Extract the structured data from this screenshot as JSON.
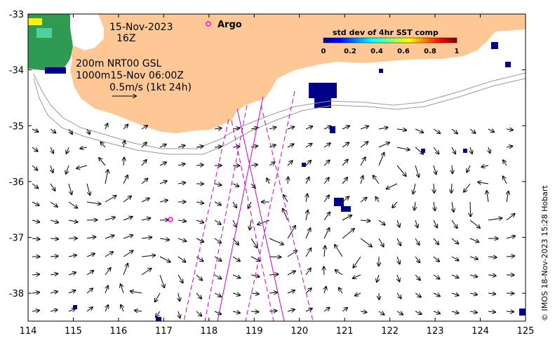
{
  "map": {
    "date_line1": "15-Nov-2023",
    "date_line2": "16Z",
    "depth_line1": "200m  NRT00 GSL",
    "depth_line2": "1000m15-Nov 06:00Z",
    "scale_label": "0.5m/s (1kt 24h)",
    "argo_label": "Argo",
    "colorbar_title": "std dev of 4hr SST comp",
    "colorbar_ticks": [
      "0",
      "0.2",
      "0.4",
      "0.6",
      "0.8",
      "1"
    ],
    "credit": "© IMOS 18-Nov-2023 15:28 Hobart",
    "x_ticks": [
      "114",
      "115",
      "116",
      "117",
      "118",
      "119",
      "120",
      "121",
      "122",
      "123",
      "124",
      "125"
    ],
    "y_ticks": [
      "-33",
      "-34",
      "-35",
      "-36",
      "-37",
      "-38"
    ],
    "colors": {
      "land": "#fdc896",
      "track": "#cc00cc",
      "argo": "#ff00ff",
      "contour": "#999999"
    }
  },
  "chart_data": {
    "type": "map",
    "xlim": [
      114,
      125
    ],
    "ylim": [
      -38.5,
      -33
    ],
    "argo_float": {
      "lon": 117.1,
      "lat": -36.68
    },
    "colorbar_range": [
      0,
      1
    ]
  }
}
